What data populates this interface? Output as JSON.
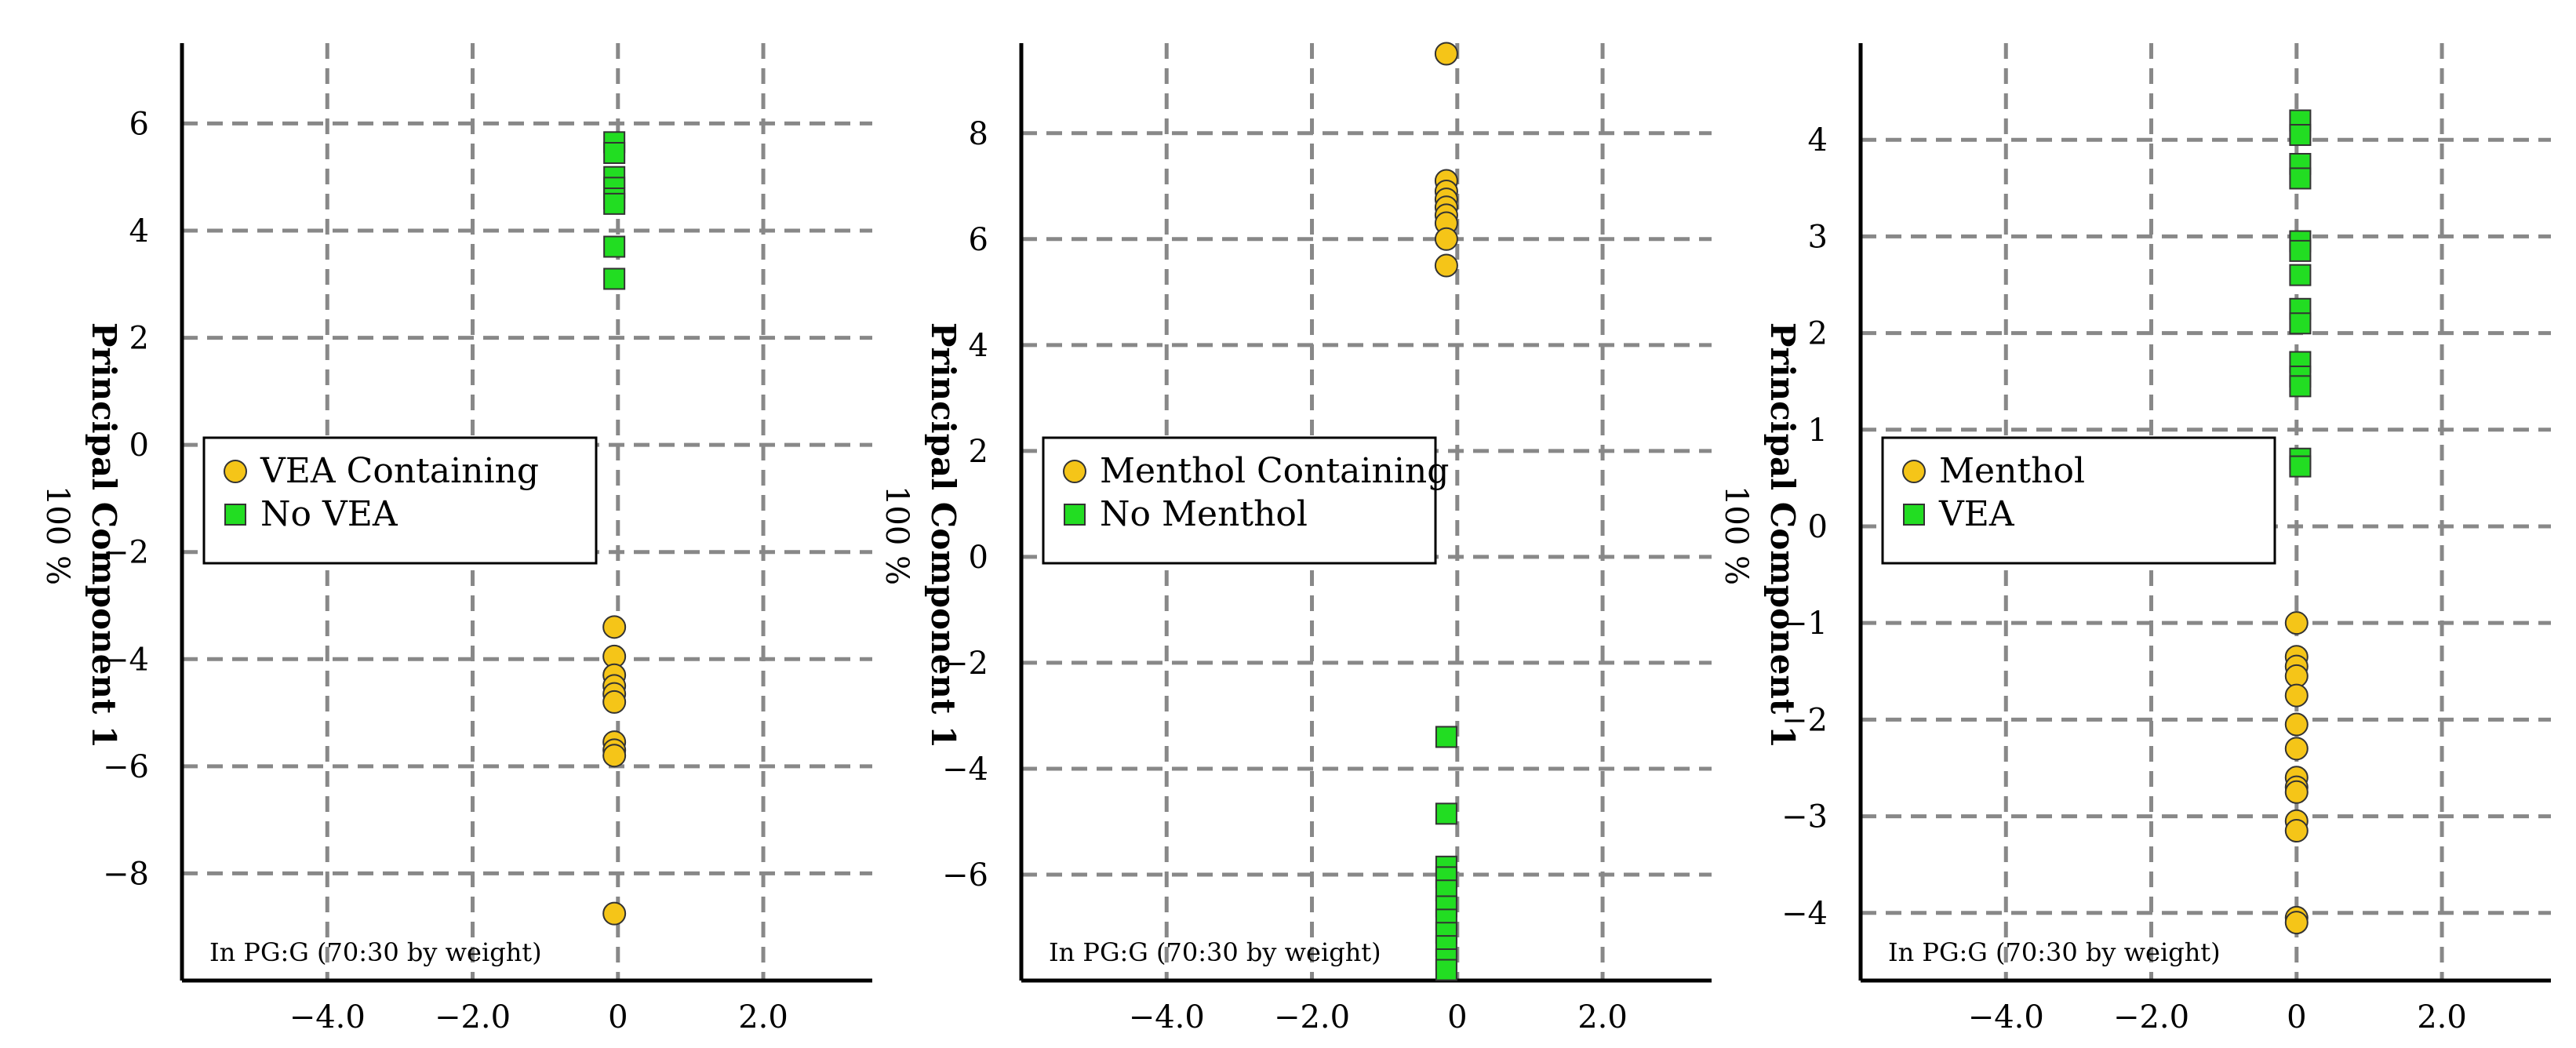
{
  "chart_data": [
    {
      "type": "scatter",
      "ylabel": "Principal Component 1",
      "ylabel_unit": "100 %",
      "note": "In PG:G (70:30 by weight)",
      "xlim": [
        -6.0,
        3.5
      ],
      "ylim": [
        -10.0,
        7.5
      ],
      "xticks": [
        -4.0,
        -2.0,
        0,
        2.0
      ],
      "xtick_labels": [
        "−4.0",
        "−2.0",
        "0",
        "2.0"
      ],
      "yticks": [
        -8,
        -6,
        -4,
        -2,
        0,
        2,
        4,
        6
      ],
      "ytick_labels": [
        "−8",
        "−6",
        "−4",
        "−2",
        "0",
        "2",
        "4",
        "6"
      ],
      "grid": true,
      "legend_placement": "middle-left",
      "series": [
        {
          "name": "VEA Containing",
          "marker": "circle",
          "color": "#f5c518",
          "points": [
            [
              -0.05,
              -3.4
            ],
            [
              -0.05,
              -3.95
            ],
            [
              -0.05,
              -4.3
            ],
            [
              -0.05,
              -4.5
            ],
            [
              -0.05,
              -4.65
            ],
            [
              -0.05,
              -4.8
            ],
            [
              -0.05,
              -5.55
            ],
            [
              -0.05,
              -5.7
            ],
            [
              -0.05,
              -5.8
            ],
            [
              -0.05,
              -8.75
            ]
          ]
        },
        {
          "name": "No VEA",
          "marker": "square",
          "color": "#22dd22",
          "points": [
            [
              -0.05,
              5.65
            ],
            [
              -0.05,
              5.45
            ],
            [
              -0.05,
              5.0
            ],
            [
              -0.05,
              4.8
            ],
            [
              -0.05,
              4.6
            ],
            [
              -0.05,
              4.5
            ],
            [
              -0.05,
              3.7
            ],
            [
              -0.05,
              3.1
            ]
          ]
        }
      ]
    },
    {
      "type": "scatter",
      "ylabel": "Principal Component 1",
      "ylabel_unit": "100 %",
      "note": "In PG:G (70:30 by weight)",
      "xlim": [
        -6.0,
        3.5
      ],
      "ylim": [
        -8.0,
        9.7
      ],
      "xticks": [
        -4.0,
        -2.0,
        0,
        2.0
      ],
      "xtick_labels": [
        "−4.0",
        "−2.0",
        "0",
        "2.0"
      ],
      "yticks": [
        -6,
        -4,
        -2,
        0,
        2,
        4,
        6,
        8
      ],
      "ytick_labels": [
        "−6",
        "−4",
        "−2",
        "0",
        "2",
        "4",
        "6",
        "8"
      ],
      "grid": true,
      "legend_placement": "middle-left",
      "series": [
        {
          "name": "Menthol Containing",
          "marker": "circle",
          "color": "#f5c518",
          "points": [
            [
              -0.15,
              9.5
            ],
            [
              -0.15,
              7.1
            ],
            [
              -0.15,
              6.9
            ],
            [
              -0.15,
              6.75
            ],
            [
              -0.15,
              6.6
            ],
            [
              -0.15,
              6.45
            ],
            [
              -0.15,
              6.3
            ],
            [
              -0.15,
              6.0
            ],
            [
              -0.15,
              5.5
            ]
          ]
        },
        {
          "name": "No Menthol",
          "marker": "square",
          "color": "#22dd22",
          "points": [
            [
              -0.15,
              -3.4
            ],
            [
              -0.15,
              -4.85
            ],
            [
              -0.15,
              -5.85
            ],
            [
              -0.15,
              -6.05
            ],
            [
              -0.15,
              -6.3
            ],
            [
              -0.15,
              -6.6
            ],
            [
              -0.15,
              -6.85
            ],
            [
              -0.15,
              -7.1
            ],
            [
              -0.15,
              -7.35
            ],
            [
              -0.15,
              -7.6
            ],
            [
              -0.15,
              -7.8
            ]
          ]
        }
      ]
    },
    {
      "type": "scatter",
      "ylabel": "Principal Component 1",
      "ylabel_unit": "100 %",
      "note": "In PG:G (70:30 by weight)",
      "xlim": [
        -6.0,
        3.5
      ],
      "ylim": [
        -4.7,
        5.0
      ],
      "xticks": [
        -4.0,
        -2.0,
        0,
        2.0
      ],
      "xtick_labels": [
        "−4.0",
        "−2.0",
        "0",
        "2.0"
      ],
      "yticks": [
        -4,
        -3,
        -2,
        -1,
        0,
        1,
        2,
        3,
        4
      ],
      "ytick_labels": [
        "−4",
        "−3",
        "−2",
        "−1",
        "0",
        "1",
        "2",
        "3",
        "4"
      ],
      "grid": true,
      "legend_placement": "middle-left",
      "series": [
        {
          "name": "Menthol",
          "marker": "circle",
          "color": "#f5c518",
          "points": [
            [
              0,
              -1.0
            ],
            [
              0,
              -1.35
            ],
            [
              0,
              -1.45
            ],
            [
              0,
              -1.55
            ],
            [
              0,
              -1.75
            ],
            [
              0,
              -2.05
            ],
            [
              0,
              -2.3
            ],
            [
              0,
              -2.6
            ],
            [
              0,
              -2.7
            ],
            [
              0,
              -2.75
            ],
            [
              0,
              -3.05
            ],
            [
              0,
              -3.15
            ],
            [
              0,
              -4.05
            ],
            [
              0,
              -4.1
            ]
          ]
        },
        {
          "name": "VEA",
          "marker": "square",
          "color": "#22dd22",
          "points": [
            [
              0.05,
              4.2
            ],
            [
              0.05,
              4.05
            ],
            [
              0.05,
              3.75
            ],
            [
              0.05,
              3.6
            ],
            [
              0.05,
              2.95
            ],
            [
              0.05,
              2.85
            ],
            [
              0.05,
              2.6
            ],
            [
              0.05,
              2.25
            ],
            [
              0.05,
              2.1
            ],
            [
              0.05,
              1.7
            ],
            [
              0.05,
              1.55
            ],
            [
              0.05,
              1.45
            ],
            [
              0.05,
              0.7
            ],
            [
              0.05,
              0.62
            ]
          ]
        }
      ]
    }
  ]
}
